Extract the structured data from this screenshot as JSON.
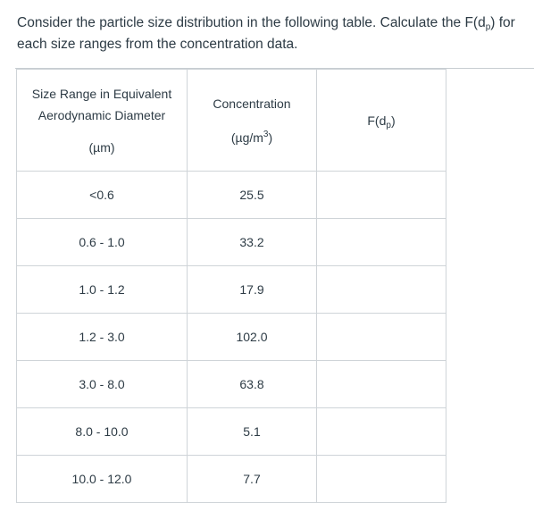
{
  "question": {
    "line1_pre": "Consider the particle size distribution in the following table. Calculate the F(d",
    "line1_sub": "p",
    "line1_post": ") for",
    "line2": "each size ranges from the concentration data."
  },
  "table": {
    "headers": {
      "size_line1": "Size Range in Equivalent",
      "size_line2": "Aerodynamic Diameter",
      "size_unit": "(µm)",
      "conc_label": "Concentration",
      "conc_unit_pre": "(µg/m",
      "conc_unit_sup": "3",
      "conc_unit_post": ")",
      "f_pre": "F(d",
      "f_sub": "p",
      "f_post": ")"
    },
    "rows": [
      {
        "size": "<0.6",
        "conc": "25.5",
        "f": ""
      },
      {
        "size": "0.6 - 1.0",
        "conc": "33.2",
        "f": ""
      },
      {
        "size": "1.0 - 1.2",
        "conc": "17.9",
        "f": ""
      },
      {
        "size": "1.2 - 3.0",
        "conc": "102.0",
        "f": ""
      },
      {
        "size": "3.0 - 8.0",
        "conc": "63.8",
        "f": ""
      },
      {
        "size": "8.0 - 10.0",
        "conc": "5.1",
        "f": ""
      },
      {
        "size": "10.0 - 12.0",
        "conc": "7.7",
        "f": ""
      }
    ]
  }
}
